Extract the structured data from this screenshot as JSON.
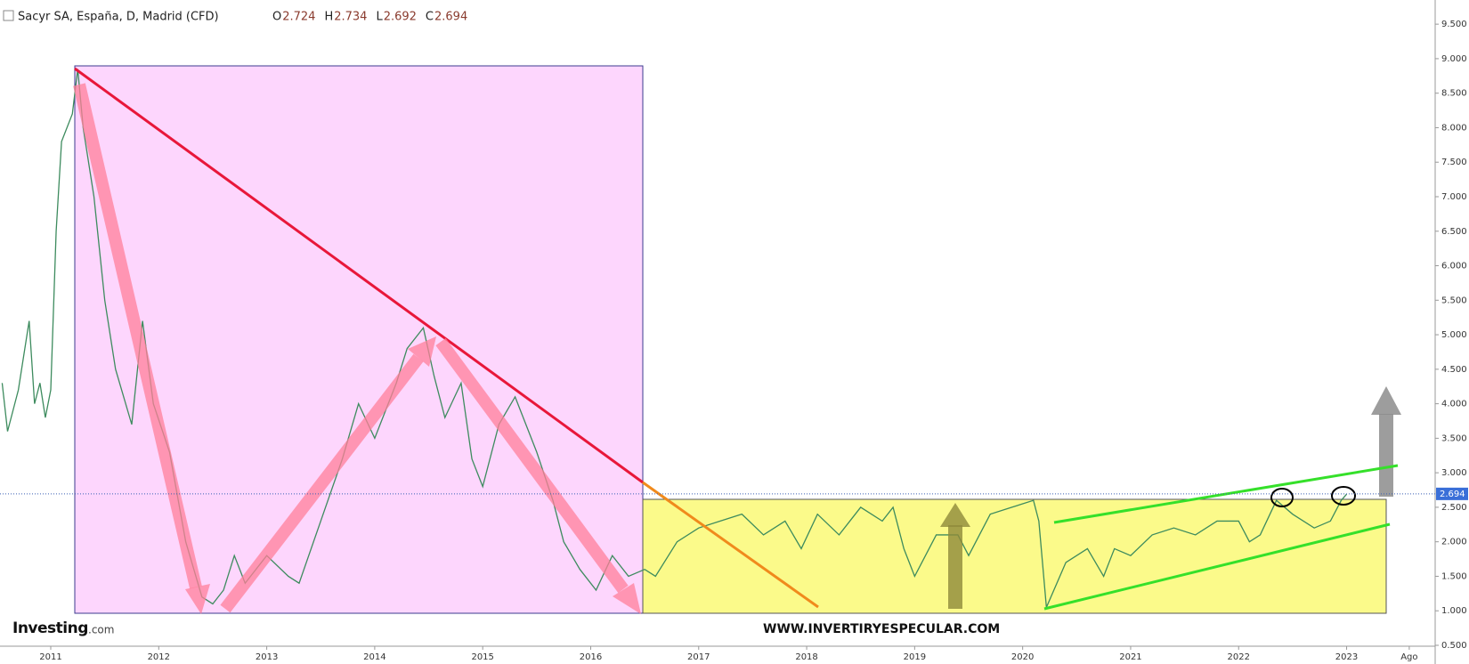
{
  "header": {
    "title": "Sacyr SA, España, D, Madrid (CFD)",
    "ohlc": [
      {
        "label": "O",
        "value": 2.724
      },
      {
        "label": "H",
        "value": 2.734
      },
      {
        "label": "L",
        "value": 2.692
      },
      {
        "label": "C",
        "value": 2.694
      }
    ]
  },
  "chart_data": {
    "type": "line",
    "watermark": "WWW.INVERTIRYESPECULAR.COM",
    "logo": {
      "brand": "Investing",
      "suffix": ".com"
    },
    "series": [
      {
        "color": "#3d8b5e",
        "x": [
          2010.55,
          2010.6,
          2010.7,
          2010.8,
          2010.85,
          2010.9,
          2010.95,
          2011.0,
          2011.05,
          2011.1,
          2011.2,
          2011.25,
          2011.3,
          2011.4,
          2011.5,
          2011.6,
          2011.75,
          2011.85,
          2011.95,
          2012.1,
          2012.25,
          2012.4,
          2012.5,
          2012.6,
          2012.7,
          2012.8,
          2013.0,
          2013.2,
          2013.3,
          2013.5,
          2013.7,
          2013.85,
          2014.0,
          2014.2,
          2014.3,
          2014.45,
          2014.55,
          2014.65,
          2014.8,
          2014.9,
          2015.0,
          2015.15,
          2015.3,
          2015.5,
          2015.65,
          2015.75,
          2015.9,
          2016.05,
          2016.2,
          2016.35,
          2016.5,
          2016.6,
          2016.8,
          2017.0,
          2017.2,
          2017.4,
          2017.6,
          2017.8,
          2017.95,
          2018.1,
          2018.3,
          2018.5,
          2018.7,
          2018.8,
          2018.9,
          2019.0,
          2019.2,
          2019.4,
          2019.5,
          2019.7,
          2019.9,
          2020.1,
          2020.15,
          2020.22,
          2020.4,
          2020.6,
          2020.75,
          2020.85,
          2021.0,
          2021.2,
          2021.4,
          2021.6,
          2021.8,
          2022.0,
          2022.1,
          2022.2,
          2022.35,
          2022.5,
          2022.7,
          2022.85,
          2022.95,
          2023.0
        ],
        "values": [
          4.3,
          3.6,
          4.2,
          5.2,
          4.0,
          4.3,
          3.8,
          4.2,
          6.5,
          7.8,
          8.2,
          8.85,
          8.0,
          7.0,
          5.5,
          4.5,
          3.7,
          5.2,
          4.0,
          3.3,
          2.0,
          1.2,
          1.1,
          1.3,
          1.8,
          1.4,
          1.8,
          1.5,
          1.4,
          2.3,
          3.2,
          4.0,
          3.5,
          4.3,
          4.8,
          5.1,
          4.4,
          3.8,
          4.3,
          3.2,
          2.8,
          3.7,
          4.1,
          3.3,
          2.6,
          2.0,
          1.6,
          1.3,
          1.8,
          1.5,
          1.6,
          1.5,
          2.0,
          2.2,
          2.3,
          2.4,
          2.1,
          2.3,
          1.9,
          2.4,
          2.1,
          2.5,
          2.3,
          2.5,
          1.9,
          1.5,
          2.1,
          2.1,
          1.8,
          2.4,
          2.5,
          2.6,
          2.3,
          1.05,
          1.7,
          1.9,
          1.5,
          1.9,
          1.8,
          2.1,
          2.2,
          2.1,
          2.3,
          2.3,
          2.0,
          2.1,
          2.6,
          2.4,
          2.2,
          2.3,
          2.6,
          2.69
        ]
      }
    ],
    "xlim": [
      2010.53,
      2023.82
    ],
    "xticks": [
      2011,
      2012,
      2013,
      2014,
      2015,
      2016,
      2017,
      2018,
      2019,
      2020,
      2021,
      2022,
      2023,
      {
        "value": 2023.58,
        "label": "Ago"
      }
    ],
    "ylim": [
      0.5,
      9.85
    ],
    "yticks": [
      {
        "value": 0.5,
        "label": "0.500"
      },
      {
        "value": 1,
        "label": "1.000"
      },
      {
        "value": 1.5,
        "label": "1.500"
      },
      {
        "value": 2,
        "label": "2.000"
      },
      {
        "value": 2.5,
        "label": "2.500"
      },
      {
        "value": 3,
        "label": "3.000"
      },
      {
        "value": 3.5,
        "label": "3.500"
      },
      {
        "value": 4,
        "label": "4.000"
      },
      {
        "value": 4.5,
        "label": "4.500"
      },
      {
        "value": 5,
        "label": "5.000"
      },
      {
        "value": 5.5,
        "label": "5.500"
      },
      {
        "value": 6,
        "label": "6.000"
      },
      {
        "value": 6.5,
        "label": "6.500"
      },
      {
        "value": 7,
        "label": "7.000"
      },
      {
        "value": 7.5,
        "label": "7.500"
      },
      {
        "value": 8,
        "label": "8.000"
      },
      {
        "value": 8.5,
        "label": "8.500"
      },
      {
        "value": 9,
        "label": "9.000"
      },
      {
        "value": 9.5,
        "label": "9.500"
      }
    ]
  }
}
